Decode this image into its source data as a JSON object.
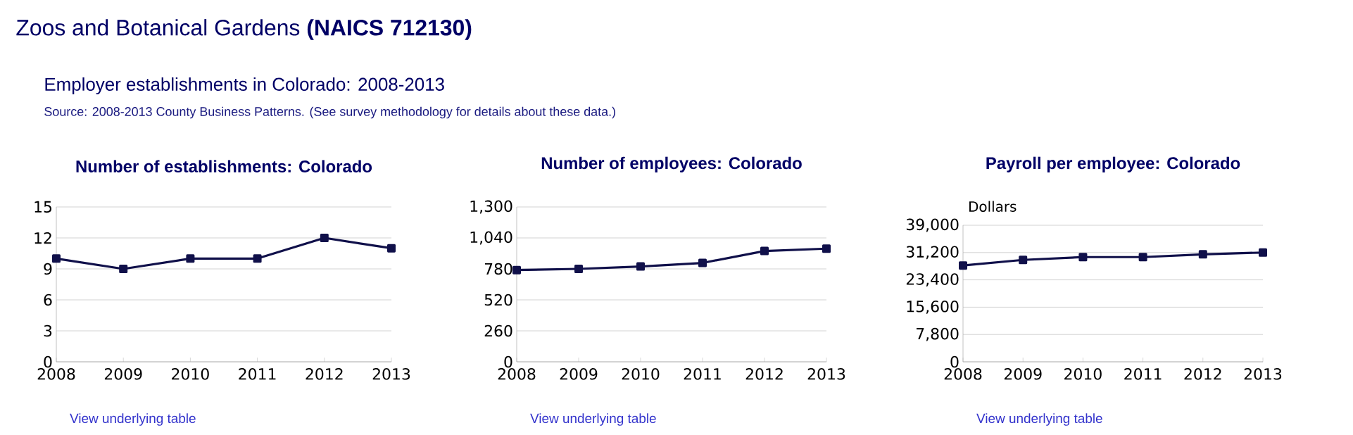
{
  "chart_data": [
    {
      "type": "line",
      "title": "Number of establishments: Colorado",
      "categories": [
        "2008",
        "2009",
        "2010",
        "2011",
        "2012",
        "2013"
      ],
      "values": [
        10,
        9,
        10,
        10,
        12,
        11
      ],
      "color": "#10104a",
      "ylim": [
        0,
        15
      ],
      "yticks": [
        0,
        3,
        6,
        9,
        12,
        15
      ],
      "grid": "y",
      "marker": "square",
      "line_style": "solid",
      "annotations": [
        "Zoos and Botanical Gardens **(NAICS 712130)**",
        "Employer establishments in Colorado: 2008-2013",
        "Source: 2008-2013 County Business Patterns. (See survey methodology for details about these data.)",
        "View underlying table"
      ]
    },
    {
      "type": "line",
      "title": "Number of employees: Colorado",
      "categories": [
        "2008",
        "2009",
        "2010",
        "2011",
        "2012",
        "2013"
      ],
      "values": [
        770,
        780,
        800,
        830,
        930,
        950
      ],
      "color": "#10104a",
      "ylim": [
        0,
        1300
      ],
      "yticks": [
        0,
        260,
        520,
        780,
        {
          "value": 1040,
          "label": "1,040"
        },
        {
          "value": 1300,
          "label": "1,300"
        }
      ],
      "grid": "y",
      "marker": "square",
      "line_style": "solid",
      "annotations": [
        "View underlying table"
      ]
    },
    {
      "type": "line",
      "title": "Payroll per employee: Colorado",
      "ylabel": "Dollars",
      "categories": [
        "2008",
        "2009",
        "2010",
        "2011",
        "2012",
        "2013"
      ],
      "values": [
        27500,
        29100,
        29900,
        29900,
        30700,
        31200
      ],
      "color": "#10104a",
      "ylim": [
        0,
        39000
      ],
      "yticks": [
        0,
        {
          "value": 7800,
          "label": "7,800"
        },
        {
          "value": 15600,
          "label": "15,600"
        },
        {
          "value": 23400,
          "label": "23,400"
        },
        {
          "value": 31200,
          "label": "31,200"
        },
        {
          "value": 39000,
          "label": "39,000"
        }
      ],
      "grid": "y",
      "marker": "square",
      "line_style": "solid",
      "annotations": [
        "View underlying table"
      ]
    }
  ]
}
